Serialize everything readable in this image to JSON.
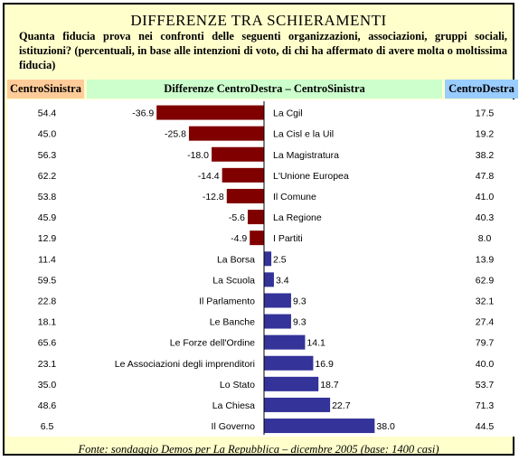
{
  "title": "DIFFERENZE TRA SCHIERAMENTI",
  "question": "Quanta fiducia prova nei confronti delle seguenti organizzazioni, associazioni, gruppi sociali, istituzioni? (percentuali, in base alle intenzioni di voto, di chi ha affermato di avere molta o moltissima fiducia)",
  "headers": {
    "left": "CentroSinistra",
    "middle": "Differenze CentroDestra – CentroSinistra",
    "right": "CentroDestra"
  },
  "source": "Fonte: sondaggio Demos per La Repubblica – dicembre 2005 (base: 1400 casi)",
  "colors": {
    "negative": "#800000",
    "positive": "#333399"
  },
  "chart_data": {
    "type": "bar",
    "orientation": "horizontal",
    "categories": [
      "La Cgil",
      "La Cisl e la Uil",
      "La Magistratura",
      "L'Unione Europea",
      "Il Comune",
      "La Regione",
      "I Partiti",
      "La Borsa",
      "La Scuola",
      "Il Parlamento",
      "Le Banche",
      "Le Forze dell'Ordine",
      "Le Associazioni degli imprenditori",
      "Lo Stato",
      "La Chiesa",
      "Il Governo"
    ],
    "category_labels": [
      "La Cgil",
      "La Cisl e la Uil",
      "La Magistratura",
      "L'Unione Europea",
      "Il Comune",
      "La Regione",
      "I Partiti",
      "La Borsa",
      "La Scuola",
      "Il Parlamento",
      "Le Banche",
      "Le Forze dell'Ordine",
      "Le Associazioni degli imprenditori",
      "Lo Stato",
      "La Chiesa",
      "Il Governo"
    ],
    "differences": [
      -36.9,
      -25.8,
      -18.0,
      -14.4,
      -12.8,
      -5.6,
      -4.9,
      2.5,
      3.4,
      9.3,
      9.3,
      14.1,
      16.9,
      18.7,
      22.7,
      38.0
    ],
    "difference_labels": [
      "-36.9",
      "-25.8",
      "-18.0",
      "-14.4",
      "-12.8",
      "-5.6",
      "-4.9",
      "2.5",
      "3.4",
      "9.3",
      "9.3",
      "14.1",
      "16.9",
      "18.7",
      "22.7",
      "38.0"
    ],
    "centrosinistra": [
      "54.4",
      "45.0",
      "56.3",
      "62.2",
      "53.8",
      "45.9",
      "12.9",
      "11.4",
      "59.5",
      "22.8",
      "18.1",
      "65.6",
      "23.1",
      "35.0",
      "48.6",
      "6.5"
    ],
    "centrodestra": [
      "17.5",
      "19.2",
      "38.2",
      "47.8",
      "41.0",
      "40.3",
      "8.0",
      "13.9",
      "62.9",
      "32.1",
      "27.4",
      "79.7",
      "40.0",
      "53.7",
      "71.3",
      "44.5"
    ]
  }
}
